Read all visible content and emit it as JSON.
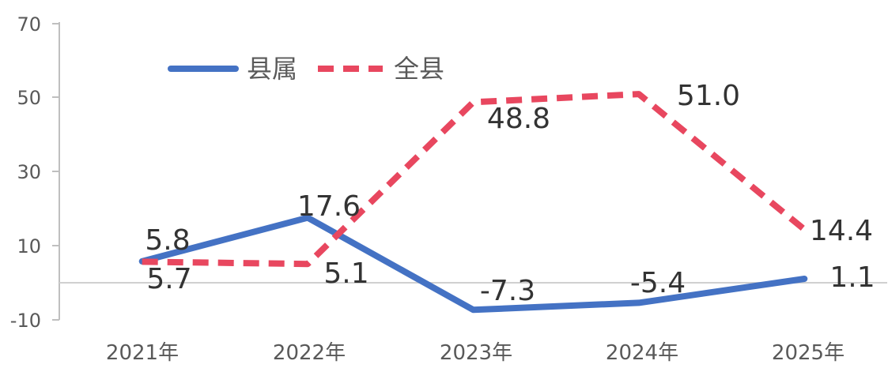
{
  "chart_data": {
    "type": "line",
    "categories": [
      "2021年",
      "2022年",
      "2023年",
      "2024年",
      "2025年"
    ],
    "series": [
      {
        "name": "县属",
        "values": [
          5.8,
          17.6,
          -7.3,
          -5.4,
          1.1
        ],
        "color": "#4472C4",
        "style": "solid"
      },
      {
        "name": "全县",
        "values": [
          5.7,
          5.1,
          48.8,
          51.0,
          14.4
        ],
        "color": "#E8475F",
        "style": "dashed"
      }
    ],
    "value_labels": [
      [
        "5.8",
        "17.6",
        "-7.3",
        "-5.4",
        "1.1"
      ],
      [
        "5.7",
        "5.1",
        "48.8",
        "51.0",
        "14.4"
      ]
    ],
    "y_ticks": [
      {
        "value": 70,
        "label": "70"
      },
      {
        "value": 50,
        "label": "50"
      },
      {
        "value": 30,
        "label": "30"
      },
      {
        "value": 10,
        "label": "10"
      },
      {
        "value": -10,
        "label": "-10"
      }
    ],
    "ylim": [
      -10,
      70
    ],
    "grid": false,
    "zero_line": true,
    "legend_position": "top-left"
  }
}
